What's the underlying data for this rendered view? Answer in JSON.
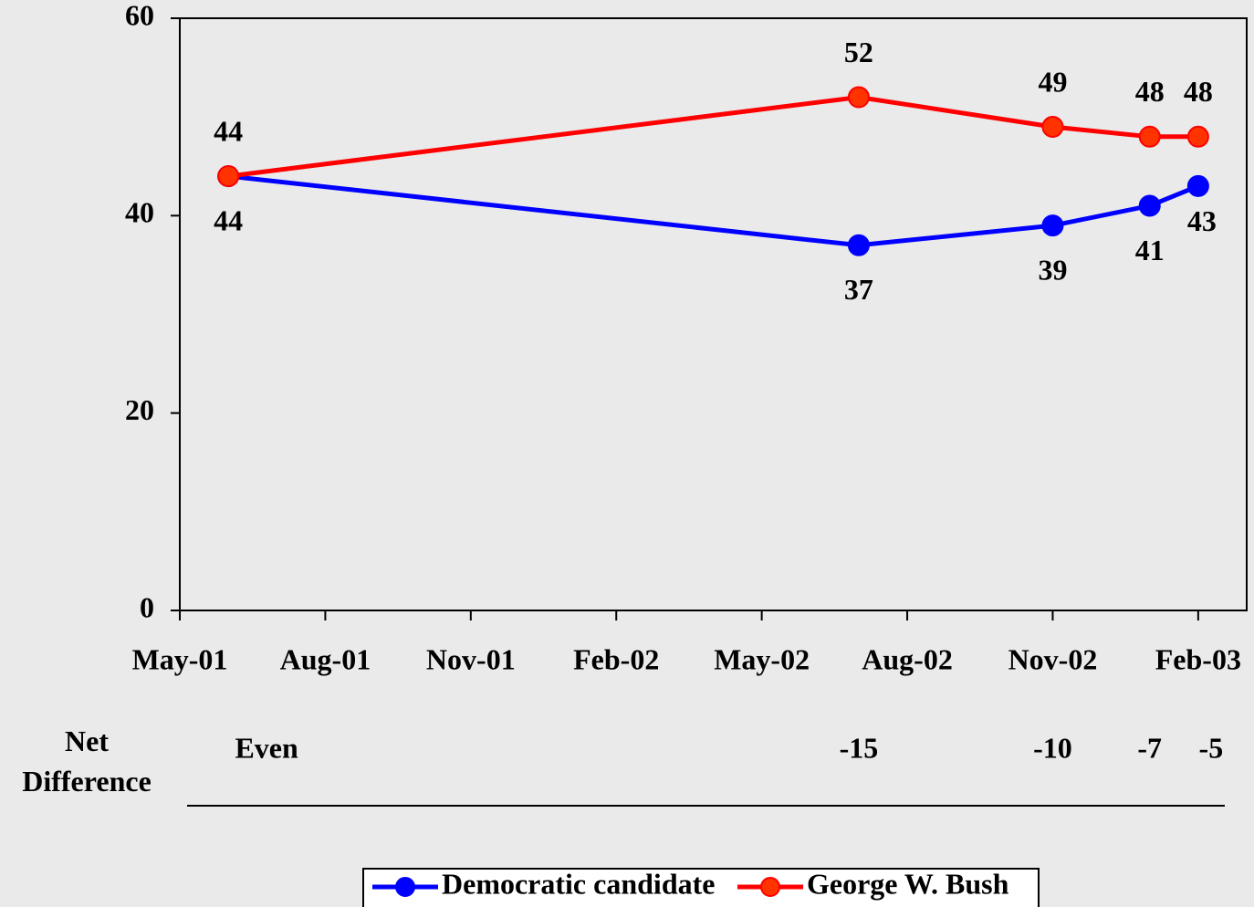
{
  "chart_data": {
    "type": "line",
    "x": [
      "2001-06",
      "2002-07",
      "2002-11",
      "2003-01",
      "2003-02"
    ],
    "series": [
      {
        "name": "Democratic candidate",
        "color": "#0000ff",
        "marker_color": "#0000ff",
        "values": [
          44,
          37,
          39,
          41,
          43
        ]
      },
      {
        "name": "George W. Bush",
        "color": "#ff0000",
        "marker_color": "#ff3300",
        "values": [
          44,
          52,
          49,
          48,
          48
        ]
      }
    ],
    "xlim": [
      "2001-05",
      "2003-03"
    ],
    "xticks": [
      {
        "value": "2001-05",
        "label": "May-01"
      },
      {
        "value": "2001-08",
        "label": "Aug-01"
      },
      {
        "value": "2001-11",
        "label": "Nov-01"
      },
      {
        "value": "2002-02",
        "label": "Feb-02"
      },
      {
        "value": "2002-05",
        "label": "May-02"
      },
      {
        "value": "2002-08",
        "label": "Aug-02"
      },
      {
        "value": "2002-11",
        "label": "Nov-02"
      },
      {
        "value": "2003-02",
        "label": "Feb-03"
      }
    ],
    "ylim": [
      0,
      60
    ],
    "yticks": [
      0,
      20,
      40,
      60
    ],
    "net_difference": {
      "label": "Net Difference",
      "values": [
        "Even",
        "-15",
        "-10",
        "-7",
        "-5"
      ]
    },
    "legend": "bottom"
  }
}
